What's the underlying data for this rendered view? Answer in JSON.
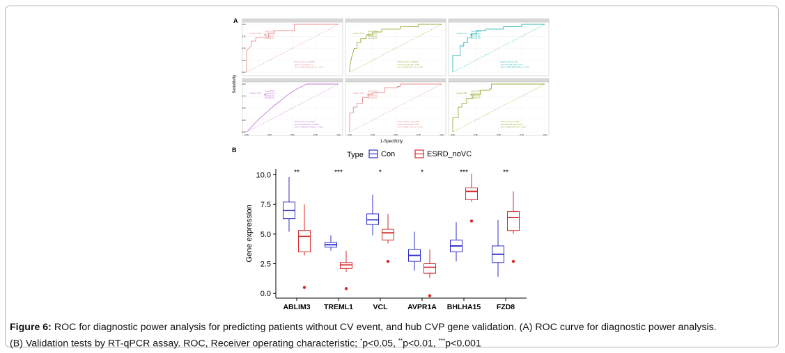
{
  "panel_labels": {
    "a": "A",
    "b": "B"
  },
  "roc_axes": {
    "ylabel": "Sensitivity",
    "xlabel": "1-Specificity",
    "ticks": [
      "0.00",
      "0.25",
      "0.50",
      "0.75",
      "1.00"
    ]
  },
  "roc_panels": [
    {
      "gene": "ABLIM3",
      "color": "#e88d8d",
      "stats": [
        "Sens:71.4%",
        "Spec:76.2%",
        "PPV:59.3%",
        "NPV:60.0%"
      ],
      "cutoff_label": "X-value: 6.910",
      "model": "Model: outcome~ABLIM3",
      "optimal": "Optimal Cutoff value: .6",
      "auc": "AUC: 0.829(0.661-0.997), p < 0.001",
      "curve": [
        [
          0,
          0
        ],
        [
          0,
          0.05
        ],
        [
          0,
          0.35
        ],
        [
          0,
          0.45
        ],
        [
          0.05,
          0.55
        ],
        [
          0.05,
          0.65
        ],
        [
          0.1,
          0.65
        ],
        [
          0.1,
          0.72
        ],
        [
          0.12,
          0.72
        ],
        [
          0.18,
          0.72
        ],
        [
          0.24,
          0.72
        ],
        [
          0.24,
          0.82
        ],
        [
          0.3,
          0.82
        ],
        [
          0.3,
          0.87
        ],
        [
          0.52,
          0.87
        ],
        [
          0.52,
          1
        ],
        [
          1,
          1
        ]
      ]
    },
    {
      "gene": "TREML1",
      "color": "#9eab3a",
      "stats": [
        "Sens:77.8%",
        "Spec:90.9%",
        "PPV:93.2%",
        "NPV:68.8%"
      ],
      "cutoff_label": "X-value: 3.973",
      "model": "Model: outcome~TREML1",
      "optimal": "Optimal Cutoff value: 1.969",
      "auc": "AUC: 0.813(0.661-1), p < 0.001",
      "curve": [
        [
          0,
          0
        ],
        [
          0,
          0.1
        ],
        [
          0.02,
          0.3
        ],
        [
          0.05,
          0.5
        ],
        [
          0.08,
          0.5
        ],
        [
          0.08,
          0.62
        ],
        [
          0.12,
          0.62
        ],
        [
          0.12,
          0.7
        ],
        [
          0.18,
          0.7
        ],
        [
          0.18,
          0.78
        ],
        [
          0.25,
          0.78
        ],
        [
          0.25,
          0.84
        ],
        [
          0.35,
          0.84
        ],
        [
          0.35,
          0.9
        ],
        [
          0.55,
          0.9
        ],
        [
          0.55,
          0.95
        ],
        [
          0.75,
          0.95
        ],
        [
          0.75,
          1
        ],
        [
          1,
          1
        ]
      ]
    },
    {
      "gene": "VCL",
      "color": "#2cb5b5",
      "stats": [
        "Sens:88.9%",
        "Spec:66.5%",
        "PPV:52.0%",
        "NPV:81.7%"
      ],
      "cutoff_label": "X-value: 6.277",
      "model": "Model: outcome~VCL",
      "optimal": "Optimal Cutoff value: 1.973",
      "auc": "AUC: 0.758(0.586-0.931), p < 0.001",
      "curve": [
        [
          0,
          0
        ],
        [
          0,
          0.35
        ],
        [
          0.08,
          0.35
        ],
        [
          0.08,
          0.55
        ],
        [
          0.12,
          0.55
        ],
        [
          0.12,
          0.62
        ],
        [
          0.16,
          0.62
        ],
        [
          0.16,
          0.72
        ],
        [
          0.2,
          0.72
        ],
        [
          0.2,
          0.8
        ],
        [
          0.26,
          0.8
        ],
        [
          0.26,
          0.87
        ],
        [
          0.36,
          0.87
        ],
        [
          0.36,
          0.9
        ],
        [
          0.55,
          0.9
        ],
        [
          0.55,
          0.95
        ],
        [
          0.75,
          0.95
        ],
        [
          0.75,
          1
        ],
        [
          1,
          1
        ]
      ]
    },
    {
      "gene": "AVPR1A",
      "color": "#c07ad6",
      "stats": [
        "Sens:88.9%",
        "Spec:50.0%",
        "PPV:80.8%",
        "NPV:64.1%"
      ],
      "cutoff_label": "X-value: 3.155",
      "model": "Model: outcome~AVPR1A",
      "optimal": "Optimal Cutoff value: -0.55423",
      "auc": "AUC: 0.803(0.567-0.822), p < 0.001",
      "curve": [
        [
          0,
          0
        ],
        [
          0.15,
          0.3
        ],
        [
          0.3,
          0.55
        ],
        [
          0.45,
          0.78
        ],
        [
          0.55,
          0.9
        ],
        [
          0.6,
          0.95
        ],
        [
          0.65,
          1
        ],
        [
          1,
          1
        ]
      ]
    },
    {
      "gene": "BHLHA15",
      "color": "#e88d8d",
      "stats": [
        "Sens:77.8%",
        "Spec:87.5%",
        "PPV:82.6%",
        "NPV:60.0%"
      ],
      "cutoff_label": "X-value: 3.951",
      "model": "Model: outcome~BHLHA15",
      "optimal": "Optimal Cutoff value: 393.8",
      "auc": "AUC: 0.803(0.736-1), p < 0.001",
      "curve": [
        [
          0,
          0
        ],
        [
          0,
          0.4
        ],
        [
          0.04,
          0.4
        ],
        [
          0.04,
          0.52
        ],
        [
          0.08,
          0.52
        ],
        [
          0.08,
          0.6
        ],
        [
          0.14,
          0.6
        ],
        [
          0.14,
          0.72
        ],
        [
          0.2,
          0.72
        ],
        [
          0.2,
          0.78
        ],
        [
          0.25,
          0.78
        ],
        [
          0.25,
          0.82
        ],
        [
          0.38,
          0.82
        ],
        [
          0.38,
          0.92
        ],
        [
          0.52,
          0.92
        ],
        [
          0.52,
          0.95
        ],
        [
          0.55,
          0.95
        ],
        [
          0.55,
          1
        ],
        [
          1,
          1
        ]
      ]
    },
    {
      "gene": "FZD8",
      "color": "#9eab3a",
      "stats": [
        "Sens:77.8%",
        "Spec:67.1%",
        "PPV:70.0%",
        "NPV:80.0%"
      ],
      "cutoff_label": "X-value: 6.386",
      "model": "Model: outcome~FZD8",
      "optimal": "Optimal Cutoff value: 100.6",
      "auc": "AUC: 0.813(0.736-1), p < 0.001",
      "curve": [
        [
          0,
          0
        ],
        [
          0,
          0.3
        ],
        [
          0.06,
          0.3
        ],
        [
          0.06,
          0.52
        ],
        [
          0.1,
          0.52
        ],
        [
          0.1,
          0.6
        ],
        [
          0.15,
          0.6
        ],
        [
          0.15,
          0.7
        ],
        [
          0.22,
          0.7
        ],
        [
          0.22,
          0.78
        ],
        [
          0.3,
          0.78
        ],
        [
          0.3,
          0.87
        ],
        [
          0.4,
          0.87
        ],
        [
          0.4,
          0.9
        ],
        [
          0.42,
          0.9
        ],
        [
          0.42,
          1
        ],
        [
          1,
          1
        ]
      ]
    }
  ],
  "chart_data": {
    "type": "box",
    "title": "",
    "xlabel": "",
    "ylabel": "Gene expression",
    "ylim": [
      -0.4,
      10.5
    ],
    "yticks": [
      0.0,
      2.5,
      5.0,
      7.5,
      10.0
    ],
    "ytick_labels": [
      "0.0",
      "2.5",
      "5.0",
      "7.5",
      "10.0"
    ],
    "legend": {
      "title": "Type",
      "placement": "top"
    },
    "categories": [
      "ABLIM3",
      "TREML1",
      "VCL",
      "AVPR1A",
      "BHLHA15",
      "FZD8"
    ],
    "significance": [
      "**",
      "***",
      "*",
      "*",
      "***",
      "**"
    ],
    "series": [
      {
        "name": "Con",
        "color": "#2d2dc8",
        "boxes": [
          {
            "min": 5.2,
            "q1": 6.3,
            "median": 7.0,
            "q3": 7.7,
            "max": 9.8,
            "outliers": []
          },
          {
            "min": 3.6,
            "q1": 3.9,
            "median": 4.1,
            "q3": 4.3,
            "max": 4.9,
            "outliers": []
          },
          {
            "min": 4.9,
            "q1": 5.8,
            "median": 6.2,
            "q3": 6.7,
            "max": 8.3,
            "outliers": []
          },
          {
            "min": 1.9,
            "q1": 2.7,
            "median": 3.2,
            "q3": 3.7,
            "max": 5.2,
            "outliers": []
          },
          {
            "min": 2.7,
            "q1": 3.5,
            "median": 4.0,
            "q3": 4.5,
            "max": 6.0,
            "outliers": []
          },
          {
            "min": 1.4,
            "q1": 2.6,
            "median": 3.3,
            "q3": 4.0,
            "max": 6.2,
            "outliers": []
          }
        ]
      },
      {
        "name": "ESRD_noVC",
        "color": "#d42a2a",
        "boxes": [
          {
            "min": 3.2,
            "q1": 3.5,
            "median": 4.8,
            "q3": 5.3,
            "max": 7.5,
            "outliers": [
              0.5
            ]
          },
          {
            "min": 1.8,
            "q1": 2.1,
            "median": 2.4,
            "q3": 2.6,
            "max": 3.6,
            "outliers": [
              0.4
            ]
          },
          {
            "min": 4.2,
            "q1": 4.5,
            "median": 5.1,
            "q3": 5.4,
            "max": 6.7,
            "outliers": [
              2.7
            ]
          },
          {
            "min": 1.3,
            "q1": 1.7,
            "median": 2.2,
            "q3": 2.5,
            "max": 3.7,
            "outliers": [
              -0.2
            ]
          },
          {
            "min": 7.7,
            "q1": 7.9,
            "median": 8.6,
            "q3": 8.9,
            "max": 10.1,
            "outliers": [
              6.1
            ]
          },
          {
            "min": 5.0,
            "q1": 5.3,
            "median": 6.4,
            "q3": 6.9,
            "max": 8.6,
            "outliers": [
              2.7
            ]
          }
        ]
      }
    ]
  },
  "caption": {
    "label": "Figure 6:",
    "line1": " ROC for diagnostic power analysis for predicting patients without CV event, and hub CVP gene validation. (A) ROC curve for diagnostic power analysis.",
    "line2a": "(B) Validation tests by RT-qPCR assay. ROC, Receiver operating characteristic; ",
    "sig1": "*",
    "p1": "p<0.05, ",
    "sig2": "**",
    "p2": "p<0.01, ",
    "sig3": "***",
    "p3": "p<0.001"
  }
}
